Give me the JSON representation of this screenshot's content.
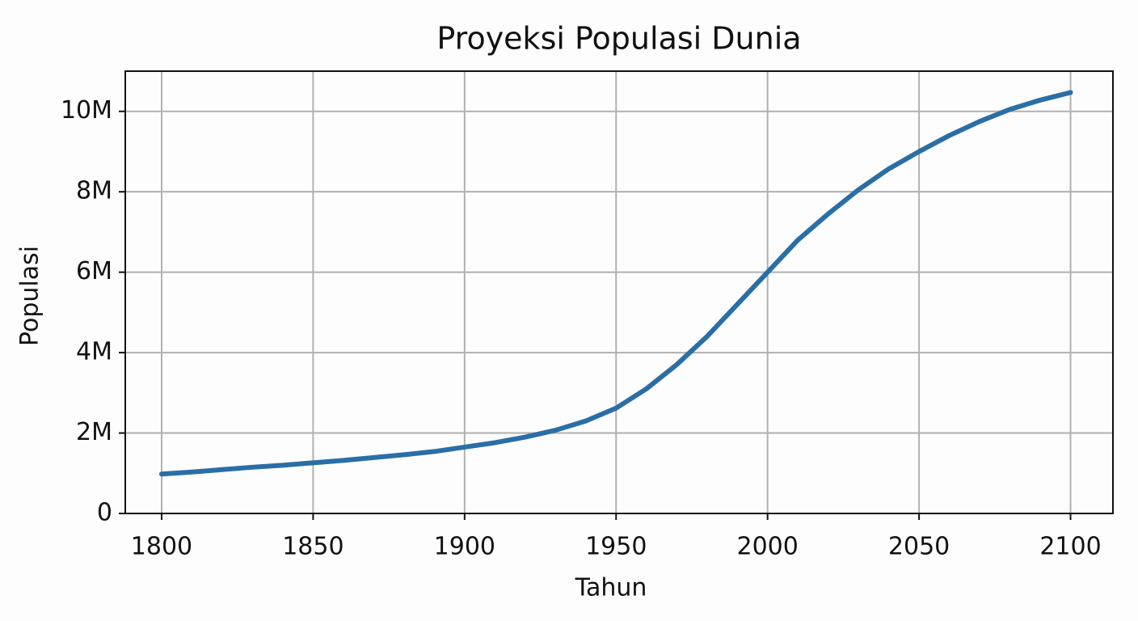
{
  "chart_data": {
    "type": "line",
    "title": "Proyeksi Populasi Dunia",
    "x_label": "Tahun",
    "y_label": "Populasi",
    "x": [
      1800,
      1810,
      1820,
      1830,
      1840,
      1850,
      1860,
      1870,
      1880,
      1890,
      1900,
      1910,
      1920,
      1930,
      1940,
      1950,
      1960,
      1970,
      1980,
      1990,
      2000,
      2010,
      2020,
      2030,
      2040,
      2050,
      2060,
      2070,
      2080,
      2090,
      2100
    ],
    "series": [
      {
        "name": "Populasi",
        "color": "#2a6ea6",
        "values": [
          980000,
          1030000,
          1090000,
          1150000,
          1200000,
          1260000,
          1320000,
          1390000,
          1460000,
          1540000,
          1650000,
          1760000,
          1900000,
          2070000,
          2300000,
          2620000,
          3100000,
          3700000,
          4400000,
          5200000,
          6000000,
          6800000,
          7450000,
          8050000,
          8570000,
          9000000,
          9400000,
          9750000,
          10050000,
          10280000,
          10470000
        ]
      }
    ],
    "xlim": [
      1788,
      2114
    ],
    "ylim": [
      0,
      11000000
    ],
    "xticks": [
      1800,
      1850,
      1900,
      1950,
      2000,
      2050,
      2100
    ],
    "yticks": [
      0,
      {
        "value": 2000000,
        "label": "2M"
      },
      {
        "value": 4000000,
        "label": "4M"
      },
      {
        "value": 6000000,
        "label": "6M"
      },
      {
        "value": 8000000,
        "label": "8M"
      },
      {
        "value": 10000000,
        "label": "10M"
      }
    ],
    "grid": true
  }
}
